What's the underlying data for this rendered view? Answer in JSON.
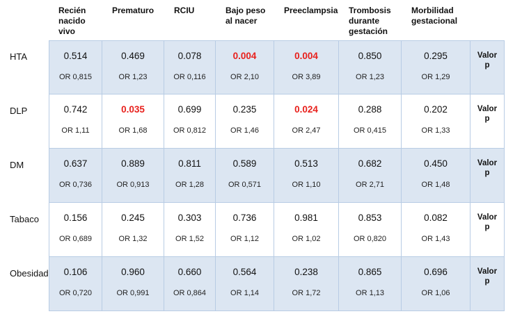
{
  "table": {
    "columns": [
      "Recién nacido vivo",
      "Prematuro",
      "RCIU",
      "Bajo peso al nacer",
      "Preeclampsia",
      "Trombosis durante gestación",
      "Morbilidad gestacional"
    ],
    "highlight_color": "#e8201c",
    "rows": [
      {
        "label": "HTA",
        "note": "Valor p",
        "cells": [
          {
            "p": "0.514",
            "or": "OR 0,815"
          },
          {
            "p": "0.469",
            "or": "OR 1,23"
          },
          {
            "p": "0.078",
            "or": "OR 0,116"
          },
          {
            "p": "0.004",
            "or": "OR 2,10",
            "significant": true
          },
          {
            "p": "0.004",
            "or": "OR 3,89",
            "significant": true
          },
          {
            "p": "0.850",
            "or": "OR 1,23"
          },
          {
            "p": "0.295",
            "or": "OR 1,29"
          }
        ]
      },
      {
        "label": "DLP",
        "note": "Valor p",
        "cells": [
          {
            "p": "0.742",
            "or": "OR 1,11"
          },
          {
            "p": "0.035",
            "or": "OR 1,68",
            "significant": true
          },
          {
            "p": "0.699",
            "or": "OR 0,812"
          },
          {
            "p": "0.235",
            "or": "OR 1,46"
          },
          {
            "p": "0.024",
            "or": "OR 2,47",
            "significant": true
          },
          {
            "p": "0.288",
            "or": "OR 0,415"
          },
          {
            "p": "0.202",
            "or": "OR 1,33"
          }
        ]
      },
      {
        "label": "DM",
        "note": "Valor p",
        "cells": [
          {
            "p": "0.637",
            "or": "OR 0,736"
          },
          {
            "p": "0.889",
            "or": "OR 0,913"
          },
          {
            "p": "0.811",
            "or": "OR 1,28"
          },
          {
            "p": "0.589",
            "or": "OR 0,571"
          },
          {
            "p": "0.513",
            "or": "OR 1,10"
          },
          {
            "p": "0.682",
            "or": "OR 2,71"
          },
          {
            "p": "0.450",
            "or": "OR 1,48"
          }
        ]
      },
      {
        "label": "Tabaco",
        "note": "Valor p",
        "cells": [
          {
            "p": "0.156",
            "or": "OR 0,689"
          },
          {
            "p": "0.245",
            "or": "OR 1,32"
          },
          {
            "p": "0.303",
            "or": "OR 1,52"
          },
          {
            "p": "0.736",
            "or": "OR 1,12"
          },
          {
            "p": "0.981",
            "or": "OR 1,02"
          },
          {
            "p": "0.853",
            "or": "OR 0,820"
          },
          {
            "p": "0.082",
            "or": "OR 1,43"
          }
        ]
      },
      {
        "label": "Obesidad",
        "note": "Valor p",
        "cells": [
          {
            "p": "0.106",
            "or": "OR 0,720"
          },
          {
            "p": "0.960",
            "or": "OR 0,991"
          },
          {
            "p": "0.660",
            "or": "OR 0,864"
          },
          {
            "p": "0.564",
            "or": "OR 1,14"
          },
          {
            "p": "0.238",
            "or": "OR 1,72"
          },
          {
            "p": "0.865",
            "or": "OR 1,13"
          },
          {
            "p": "0.696",
            "or": "OR 1,06"
          }
        ]
      }
    ]
  }
}
